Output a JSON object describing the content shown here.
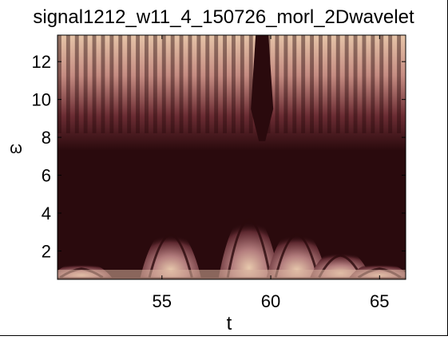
{
  "chart_data": {
    "type": "heatmap",
    "title": "signal1212_w11_4_150726_morl_2Dwavelet",
    "xlabel": "t",
    "ylabel": "ω",
    "xlim": [
      50.2,
      66.2
    ],
    "ylim": [
      0.5,
      13.4
    ],
    "x_ticks": [
      55,
      60,
      65
    ],
    "y_ticks": [
      2,
      4,
      6,
      8,
      10,
      12
    ],
    "x_tick_labels": [
      "55",
      "60",
      "65"
    ],
    "y_tick_labels": [
      "2",
      "4",
      "6",
      "8",
      "10",
      "12"
    ],
    "grid": false,
    "colormap": [
      "#2a0a0d",
      "#5a2a2f",
      "#a87378",
      "#e3c3a9",
      "#f2e2c6"
    ],
    "high_band": {
      "omega_range": [
        7.3,
        13.4
      ],
      "stripe_period_t": 0.4,
      "gap_center_t": 59.6
    },
    "low_lobes": [
      {
        "t_center": 51.3,
        "peak_omega": 1.4
      },
      {
        "t_center": 55.4,
        "peak_omega": 3.2
      },
      {
        "t_center": 59.0,
        "peak_omega": 4.0
      },
      {
        "t_center": 61.2,
        "peak_omega": 3.2
      },
      {
        "t_center": 63.2,
        "peak_omega": 2.1
      },
      {
        "t_center": 65.0,
        "peak_omega": 1.4
      }
    ]
  }
}
